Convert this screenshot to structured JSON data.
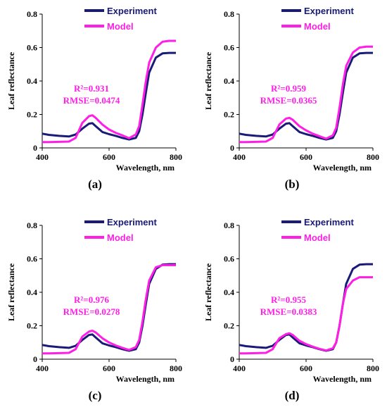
{
  "colors": {
    "experiment": "#1a1a78",
    "model": "#ff1ee6",
    "axis": "#000000"
  },
  "chart_data": [
    {
      "type": "line",
      "panel_label": "(a)",
      "xlabel": "Wavelength, nm",
      "ylabel": "Leaf reflectance",
      "xlim": [
        400,
        800
      ],
      "ylim": [
        0,
        0.8
      ],
      "xticks": [
        "400",
        "600",
        "800"
      ],
      "yticks": [
        "0",
        "0.2",
        "0.4",
        "0.6",
        "0.8"
      ],
      "legend": [
        "Experiment",
        "Model"
      ],
      "annotation": {
        "r2_label": "R²=0.931",
        "rmse_label": "RMSE=0.0474"
      },
      "series": [
        {
          "name": "Experiment",
          "x": [
            400,
            420,
            450,
            480,
            500,
            520,
            540,
            550,
            560,
            580,
            600,
            620,
            640,
            660,
            680,
            690,
            700,
            710,
            720,
            740,
            760,
            780,
            800
          ],
          "y": [
            0.085,
            0.078,
            0.072,
            0.068,
            0.08,
            0.115,
            0.145,
            0.148,
            0.13,
            0.095,
            0.082,
            0.072,
            0.06,
            0.05,
            0.06,
            0.1,
            0.2,
            0.33,
            0.45,
            0.54,
            0.565,
            0.568,
            0.568
          ]
        },
        {
          "name": "Model",
          "x": [
            400,
            420,
            450,
            480,
            500,
            520,
            540,
            550,
            560,
            580,
            600,
            620,
            640,
            660,
            680,
            690,
            700,
            710,
            720,
            740,
            760,
            780,
            800
          ],
          "y": [
            0.035,
            0.035,
            0.036,
            0.038,
            0.06,
            0.15,
            0.19,
            0.195,
            0.18,
            0.14,
            0.11,
            0.09,
            0.075,
            0.058,
            0.08,
            0.13,
            0.26,
            0.4,
            0.51,
            0.6,
            0.635,
            0.64,
            0.64
          ]
        }
      ]
    },
    {
      "type": "line",
      "panel_label": "(b)",
      "xlabel": "Wavelength, nm",
      "ylabel": "Leaf reflectance",
      "xlim": [
        400,
        800
      ],
      "ylim": [
        0,
        0.8
      ],
      "xticks": [
        "400",
        "600",
        "800"
      ],
      "yticks": [
        "0",
        "0.2",
        "0.4",
        "0.6",
        "0.8"
      ],
      "legend": [
        "Experiment",
        "Model"
      ],
      "annotation": {
        "r2_label": "R²=0.959",
        "rmse_label": "RMSE=0.0365"
      },
      "series": [
        {
          "name": "Experiment",
          "x": [
            400,
            420,
            450,
            480,
            500,
            520,
            540,
            550,
            560,
            580,
            600,
            620,
            640,
            660,
            680,
            690,
            700,
            710,
            720,
            740,
            760,
            780,
            800
          ],
          "y": [
            0.085,
            0.078,
            0.072,
            0.068,
            0.08,
            0.115,
            0.145,
            0.148,
            0.13,
            0.095,
            0.082,
            0.072,
            0.06,
            0.05,
            0.06,
            0.1,
            0.2,
            0.33,
            0.45,
            0.54,
            0.565,
            0.568,
            0.568
          ]
        },
        {
          "name": "Model",
          "x": [
            400,
            420,
            450,
            480,
            500,
            520,
            540,
            550,
            560,
            580,
            600,
            620,
            640,
            660,
            680,
            690,
            700,
            710,
            720,
            740,
            760,
            780,
            800
          ],
          "y": [
            0.035,
            0.035,
            0.036,
            0.038,
            0.06,
            0.14,
            0.175,
            0.18,
            0.168,
            0.13,
            0.105,
            0.085,
            0.07,
            0.055,
            0.075,
            0.12,
            0.24,
            0.38,
            0.49,
            0.57,
            0.6,
            0.605,
            0.605
          ]
        }
      ]
    },
    {
      "type": "line",
      "panel_label": "(c)",
      "xlabel": "Wavelength, nm",
      "ylabel": "Leaf reflectance",
      "xlim": [
        400,
        800
      ],
      "ylim": [
        0,
        0.8
      ],
      "xticks": [
        "400",
        "600",
        "800"
      ],
      "yticks": [
        "0",
        "0.2",
        "0.4",
        "0.6",
        "0.8"
      ],
      "legend": [
        "Experiment",
        "Model"
      ],
      "annotation": {
        "r2_label": "R²=0.976",
        "rmse_label": "RMSE=0.0278"
      },
      "series": [
        {
          "name": "Experiment",
          "x": [
            400,
            420,
            450,
            480,
            500,
            520,
            540,
            550,
            560,
            580,
            600,
            620,
            640,
            660,
            680,
            690,
            700,
            710,
            720,
            740,
            760,
            780,
            800
          ],
          "y": [
            0.085,
            0.078,
            0.072,
            0.068,
            0.08,
            0.115,
            0.145,
            0.148,
            0.13,
            0.095,
            0.082,
            0.072,
            0.06,
            0.05,
            0.06,
            0.1,
            0.2,
            0.33,
            0.45,
            0.54,
            0.565,
            0.568,
            0.568
          ]
        },
        {
          "name": "Model",
          "x": [
            400,
            420,
            450,
            480,
            500,
            520,
            540,
            550,
            560,
            580,
            600,
            620,
            640,
            660,
            680,
            690,
            700,
            710,
            720,
            740,
            760,
            780,
            800
          ],
          "y": [
            0.035,
            0.035,
            0.036,
            0.038,
            0.06,
            0.135,
            0.165,
            0.17,
            0.16,
            0.125,
            0.1,
            0.082,
            0.068,
            0.055,
            0.072,
            0.115,
            0.225,
            0.36,
            0.47,
            0.55,
            0.562,
            0.562,
            0.562
          ]
        }
      ]
    },
    {
      "type": "line",
      "panel_label": "(d)",
      "xlabel": "Wavelength, nm",
      "ylabel": "Leaf reflectance",
      "xlim": [
        400,
        800
      ],
      "ylim": [
        0,
        0.8
      ],
      "xticks": [
        "400",
        "600",
        "800"
      ],
      "yticks": [
        "0",
        "0.2",
        "0.4",
        "0.6",
        "0.8"
      ],
      "legend": [
        "Experiment",
        "Model"
      ],
      "annotation": {
        "r2_label": "R²=0.955",
        "rmse_label": "RMSE=0.0383"
      },
      "series": [
        {
          "name": "Experiment",
          "x": [
            400,
            420,
            450,
            480,
            500,
            520,
            540,
            550,
            560,
            580,
            600,
            620,
            640,
            660,
            680,
            690,
            700,
            710,
            720,
            740,
            760,
            780,
            800
          ],
          "y": [
            0.085,
            0.078,
            0.072,
            0.068,
            0.08,
            0.115,
            0.145,
            0.148,
            0.13,
            0.095,
            0.082,
            0.072,
            0.06,
            0.05,
            0.06,
            0.1,
            0.2,
            0.33,
            0.45,
            0.54,
            0.565,
            0.568,
            0.568
          ]
        },
        {
          "name": "Model",
          "x": [
            400,
            420,
            450,
            480,
            500,
            520,
            540,
            550,
            560,
            580,
            600,
            620,
            640,
            660,
            680,
            690,
            700,
            710,
            720,
            740,
            760,
            780,
            800
          ],
          "y": [
            0.035,
            0.035,
            0.036,
            0.038,
            0.06,
            0.125,
            0.15,
            0.155,
            0.145,
            0.11,
            0.09,
            0.075,
            0.062,
            0.052,
            0.065,
            0.1,
            0.2,
            0.33,
            0.42,
            0.47,
            0.49,
            0.49,
            0.49
          ]
        }
      ]
    }
  ]
}
